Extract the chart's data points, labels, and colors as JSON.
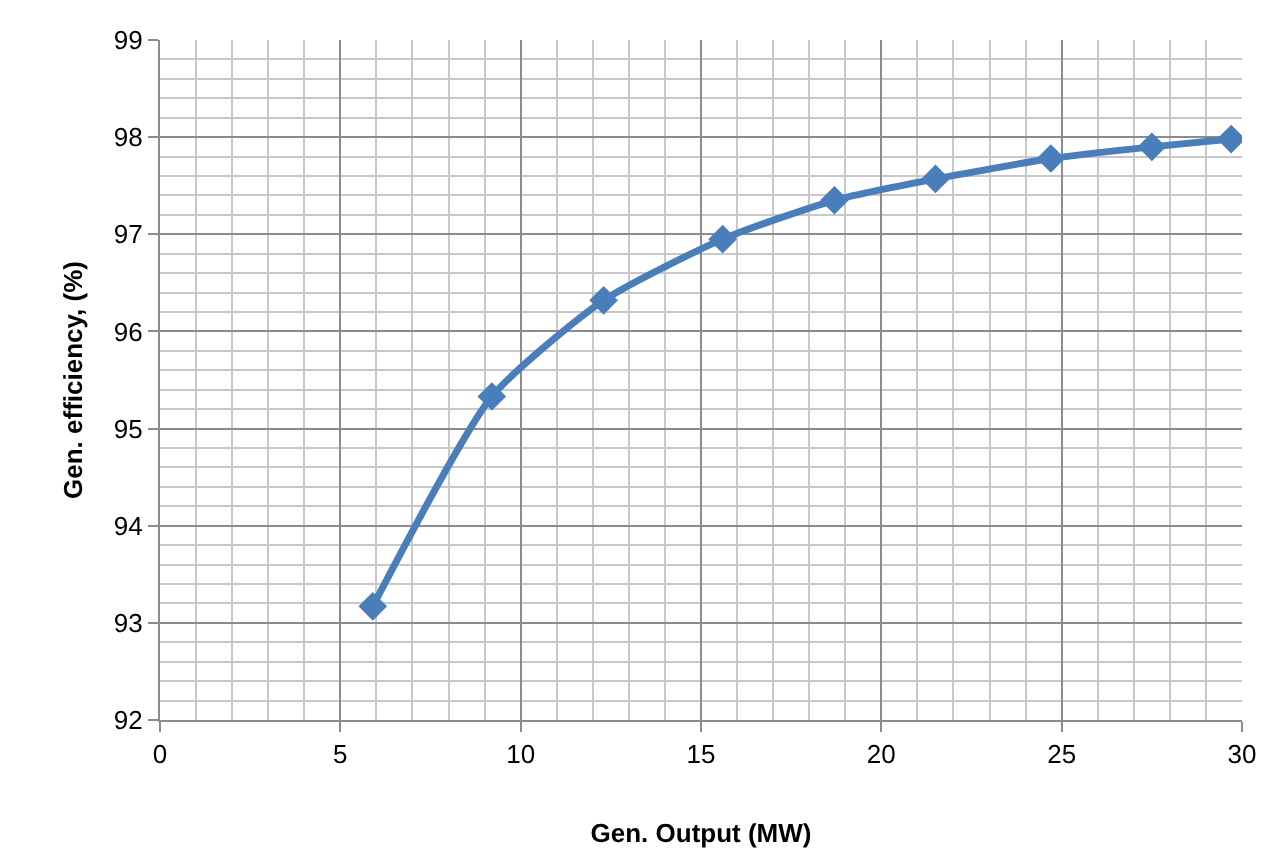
{
  "chart_data": {
    "type": "line",
    "xlabel": "Gen. Output (MW)",
    "ylabel": "Gen. efficiency, (%)",
    "x": [
      5.9,
      9.2,
      12.3,
      15.6,
      18.7,
      21.5,
      24.7,
      27.5,
      29.7
    ],
    "series": [
      {
        "color": "#4a7ebb",
        "values": [
          93.17,
          95.33,
          96.32,
          96.95,
          97.35,
          97.57,
          97.78,
          97.9,
          97.98
        ]
      }
    ],
    "xlim": [
      0,
      30
    ],
    "xticks": [
      0,
      5,
      10,
      15,
      20,
      25,
      30
    ],
    "ylim": [
      92,
      99
    ],
    "yticks": [
      92,
      93,
      94,
      95,
      96,
      97,
      98,
      99
    ],
    "grid": true,
    "marker": "diamond",
    "line_style": "solid"
  }
}
